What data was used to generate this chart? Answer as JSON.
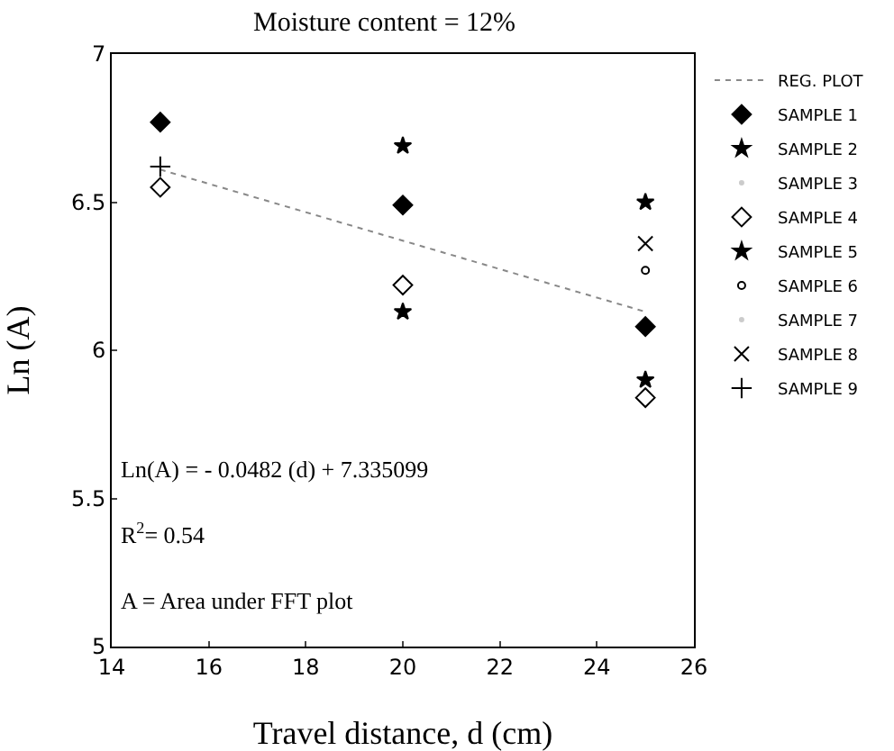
{
  "chart_data": {
    "type": "scatter",
    "title": "Moisture content = 12%",
    "xlabel": "Travel distance, d (cm)",
    "ylabel": "Ln (A)",
    "x": [
      15,
      20,
      25
    ],
    "xlim": [
      14,
      26
    ],
    "xticks": [
      14,
      16,
      18,
      20,
      22,
      24,
      26
    ],
    "ylim": [
      5,
      7
    ],
    "yticks": [
      5,
      5.5,
      6,
      6.5,
      7
    ],
    "grid": false,
    "legend": "right",
    "annotations": [
      "Ln(A) = - 0.0482 (d) + 7.335099",
      "R$^{2}$= 0.54",
      "A = Area under FFT plot"
    ],
    "series": [
      {
        "name": "REG. PLOT",
        "type": "line",
        "x": [
          15,
          25
        ],
        "values": [
          6.61,
          6.13
        ],
        "color": "#888888",
        "line_style": "dotted",
        "marker": "none"
      },
      {
        "name": "SAMPLE 1",
        "color": "#000000",
        "marker": "diamond",
        "values": [
          6.77,
          6.49,
          6.08
        ]
      },
      {
        "name": "SAMPLE 2",
        "color": "#000000",
        "marker": "star",
        "values": [
          null,
          6.13,
          5.9
        ]
      },
      {
        "name": "SAMPLE 3",
        "color": "#000000",
        "marker": "none",
        "values": [
          null,
          null,
          null
        ]
      },
      {
        "name": "SAMPLE 4",
        "color": "#000000",
        "marker": "diamond-open",
        "values": [
          6.55,
          6.22,
          5.84
        ]
      },
      {
        "name": "SAMPLE 5",
        "color": "#000000",
        "marker": "star",
        "values": [
          null,
          6.69,
          6.5
        ]
      },
      {
        "name": "SAMPLE 6",
        "color": "#000000",
        "marker": "circle-open",
        "values": [
          null,
          null,
          6.27
        ]
      },
      {
        "name": "SAMPLE 7",
        "color": "#000000",
        "marker": "none",
        "values": [
          null,
          null,
          null
        ]
      },
      {
        "name": "SAMPLE 8",
        "color": "#000000",
        "marker": "x",
        "values": [
          null,
          null,
          6.36
        ]
      },
      {
        "name": "SAMPLE 9",
        "color": "#000000",
        "marker": "cross",
        "values": [
          6.62,
          null,
          null
        ]
      }
    ]
  }
}
